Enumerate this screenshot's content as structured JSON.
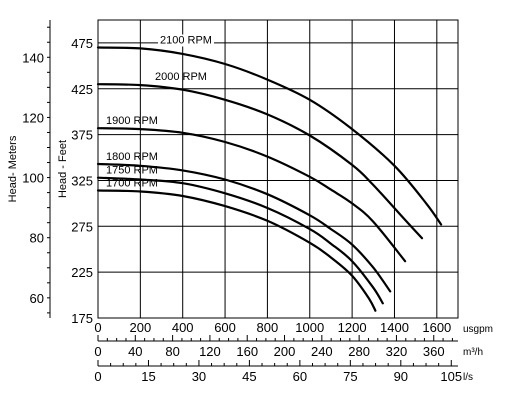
{
  "chart_data": {
    "type": "line",
    "title": "",
    "x": {
      "label": "usgpm",
      "range": [
        0,
        1700
      ],
      "ticks": [
        0,
        200,
        400,
        600,
        800,
        1000,
        1200,
        1400,
        1600
      ]
    },
    "secondary_x_axes": [
      {
        "label": "m³/h",
        "ticks": [
          0,
          40,
          80,
          120,
          160,
          200,
          240,
          280,
          320,
          360
        ],
        "range": [
          0,
          386
        ]
      },
      {
        "label": "l/s",
        "ticks": [
          0,
          15,
          30,
          45,
          60,
          75,
          90,
          105
        ],
        "range": [
          0,
          107
        ]
      }
    ],
    "y": {
      "label": "Head - Feet",
      "range": [
        175,
        500
      ],
      "ticks": [
        175,
        225,
        275,
        325,
        375,
        425,
        475
      ]
    },
    "secondary_y": {
      "label": "Head- Meters",
      "range": [
        53.3,
        152.4
      ],
      "ticks": [
        60,
        80,
        100,
        120,
        140
      ]
    },
    "grid": true,
    "series": [
      {
        "name": "2100 RPM",
        "x": [
          0,
          200,
          400,
          600,
          800,
          1000,
          1200,
          1400,
          1550,
          1620
        ],
        "y": [
          470,
          469,
          463,
          452,
          435,
          413,
          381,
          341,
          300,
          277
        ]
      },
      {
        "name": "2000 RPM",
        "x": [
          0,
          200,
          400,
          600,
          800,
          1000,
          1200,
          1300,
          1450,
          1530
        ],
        "y": [
          430,
          429,
          424,
          413,
          397,
          374,
          342,
          320,
          282,
          262
        ]
      },
      {
        "name": "1900 RPM",
        "x": [
          0,
          200,
          400,
          600,
          800,
          1000,
          1100,
          1200,
          1300,
          1450
        ],
        "y": [
          382,
          381,
          377,
          367,
          351,
          329,
          315,
          300,
          280,
          237
        ]
      },
      {
        "name": "1800 RPM",
        "x": [
          0,
          200,
          400,
          600,
          800,
          1000,
          1100,
          1200,
          1300,
          1380
        ],
        "y": [
          343,
          341,
          336,
          326,
          310,
          287,
          272,
          255,
          230,
          204
        ]
      },
      {
        "name": "1750 RPM",
        "x": [
          0,
          200,
          400,
          600,
          800,
          1000,
          1100,
          1200,
          1300,
          1345
        ],
        "y": [
          328,
          326,
          322,
          311,
          295,
          272,
          256,
          237,
          208,
          191
        ]
      },
      {
        "name": "1700 RPM",
        "x": [
          0,
          200,
          400,
          600,
          800,
          1000,
          1100,
          1200,
          1280,
          1310
        ],
        "y": [
          314,
          313,
          308,
          297,
          281,
          257,
          241,
          221,
          196,
          183
        ]
      }
    ]
  }
}
